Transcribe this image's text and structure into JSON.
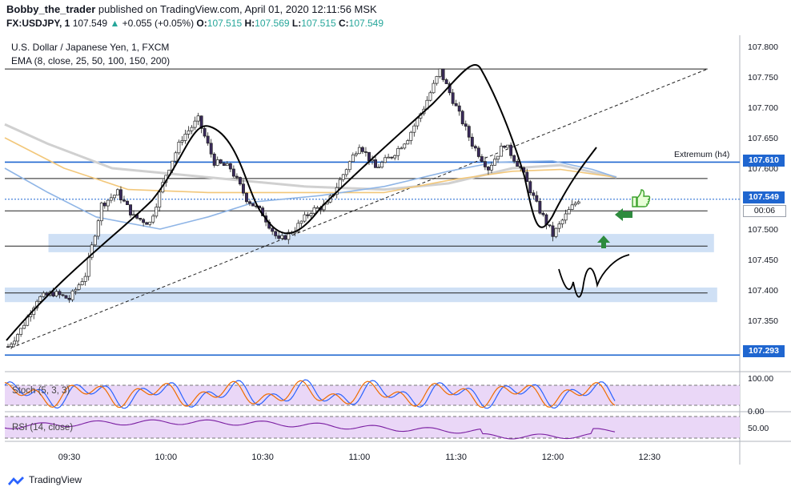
{
  "header": {
    "author": "Bobby_the_trader",
    "published": "published on TradingView.com, April 01, 2020 12:11:56 MSK",
    "symbol": "FX:USDJPY, 1",
    "last": "107.549",
    "change": "+0.055 (+0.05%)",
    "o_label": "O:",
    "o": "107.515",
    "h_label": "H:",
    "h": "107.569",
    "l_label": "L:",
    "l": "107.515",
    "c_label": "C:",
    "c": "107.549"
  },
  "legend": {
    "instrument": "U.S. Dollar / Japanese Yen, 1, FXCM",
    "ema": "EMA (8, close, 25, 50, 100, 150, 200)"
  },
  "annotations": {
    "extremum": "Extremum (h4)"
  },
  "price_tags": {
    "level_high": "107.610",
    "last": "107.549",
    "countdown": "00:06",
    "level_low": "107.293"
  },
  "colors": {
    "up_candle": "#ffffff",
    "down_candle": "#3a2a5c",
    "level_blue": "#1f66d0",
    "zone_fill": "#cfe0f5",
    "ema_blue": "#8fb5e6",
    "ema_orange": "#f2c77a",
    "ema_grey": "#d0d0d0",
    "stoch_k": "#2962ff",
    "stoch_d": "#ef6c00",
    "rsi": "#7b1fa2",
    "arrow_green": "#2e8b3e"
  },
  "footer": {
    "brand": "TradingView"
  },
  "chart_data": {
    "type": "candlestick",
    "title": "U.S. Dollar / Japanese Yen, 1, FXCM",
    "y_ticks": [
      "107.800",
      "107.750",
      "107.700",
      "107.650",
      "107.600",
      "107.550",
      "107.500",
      "107.450",
      "107.400",
      "107.350",
      "107.300"
    ],
    "ylim": [
      107.265,
      107.815
    ],
    "x_ticks": [
      "09:30",
      "10:00",
      "10:30",
      "11:00",
      "11:30",
      "12:00",
      "12:30"
    ],
    "x_range": [
      "09:10",
      "12:58"
    ],
    "close_path": [
      [
        "09:10",
        107.3
      ],
      [
        "09:15",
        107.335
      ],
      [
        "09:20",
        107.385
      ],
      [
        "09:25",
        107.395
      ],
      [
        "09:30",
        107.385
      ],
      [
        "09:35",
        107.425
      ],
      [
        "09:40",
        107.54
      ],
      [
        "09:45",
        107.56
      ],
      [
        "09:50",
        107.52
      ],
      [
        "09:55",
        107.51
      ],
      [
        "10:00",
        107.59
      ],
      [
        "10:05",
        107.65
      ],
      [
        "10:10",
        107.68
      ],
      [
        "10:15",
        107.61
      ],
      [
        "10:20",
        107.6
      ],
      [
        "10:25",
        107.55
      ],
      [
        "10:30",
        107.525
      ],
      [
        "10:35",
        107.48
      ],
      [
        "10:40",
        107.5
      ],
      [
        "10:45",
        107.53
      ],
      [
        "10:50",
        107.54
      ],
      [
        "10:55",
        107.59
      ],
      [
        "11:00",
        107.64
      ],
      [
        "11:05",
        107.6
      ],
      [
        "11:10",
        107.62
      ],
      [
        "11:15",
        107.65
      ],
      [
        "11:20",
        107.7
      ],
      [
        "11:25",
        107.76
      ],
      [
        "11:30",
        107.7
      ],
      [
        "11:35",
        107.64
      ],
      [
        "11:40",
        107.6
      ],
      [
        "11:45",
        107.64
      ],
      [
        "11:50",
        107.6
      ],
      [
        "11:55",
        107.54
      ],
      [
        "12:00",
        107.49
      ],
      [
        "12:05",
        107.53
      ],
      [
        "12:08",
        107.549
      ]
    ],
    "horizontal_levels": [
      {
        "price": 107.763,
        "style": "black"
      },
      {
        "price": 107.61,
        "style": "blue",
        "label": "Extremum (h4)"
      },
      {
        "price": 107.583,
        "style": "black"
      },
      {
        "price": 107.53,
        "style": "black"
      },
      {
        "price": 107.472,
        "style": "black"
      },
      {
        "price": 107.395,
        "style": "black"
      },
      {
        "price": 107.293,
        "style": "blue"
      }
    ],
    "zones": [
      {
        "from": "09:30",
        "to": "12:50",
        "low": 107.462,
        "high": 107.492
      },
      {
        "from": "09:10",
        "to": "12:51",
        "low": 107.38,
        "high": 107.404
      }
    ],
    "trendline_dashed": [
      [
        "09:12",
        107.305
      ],
      [
        "12:48",
        107.763
      ]
    ],
    "stoch": {
      "label": "Stoch (5, 3, 3)",
      "ticks": [
        "100.00",
        "0.00"
      ]
    },
    "rsi": {
      "label": "RSI (14, close)",
      "ticks": [
        "50.00"
      ]
    }
  }
}
